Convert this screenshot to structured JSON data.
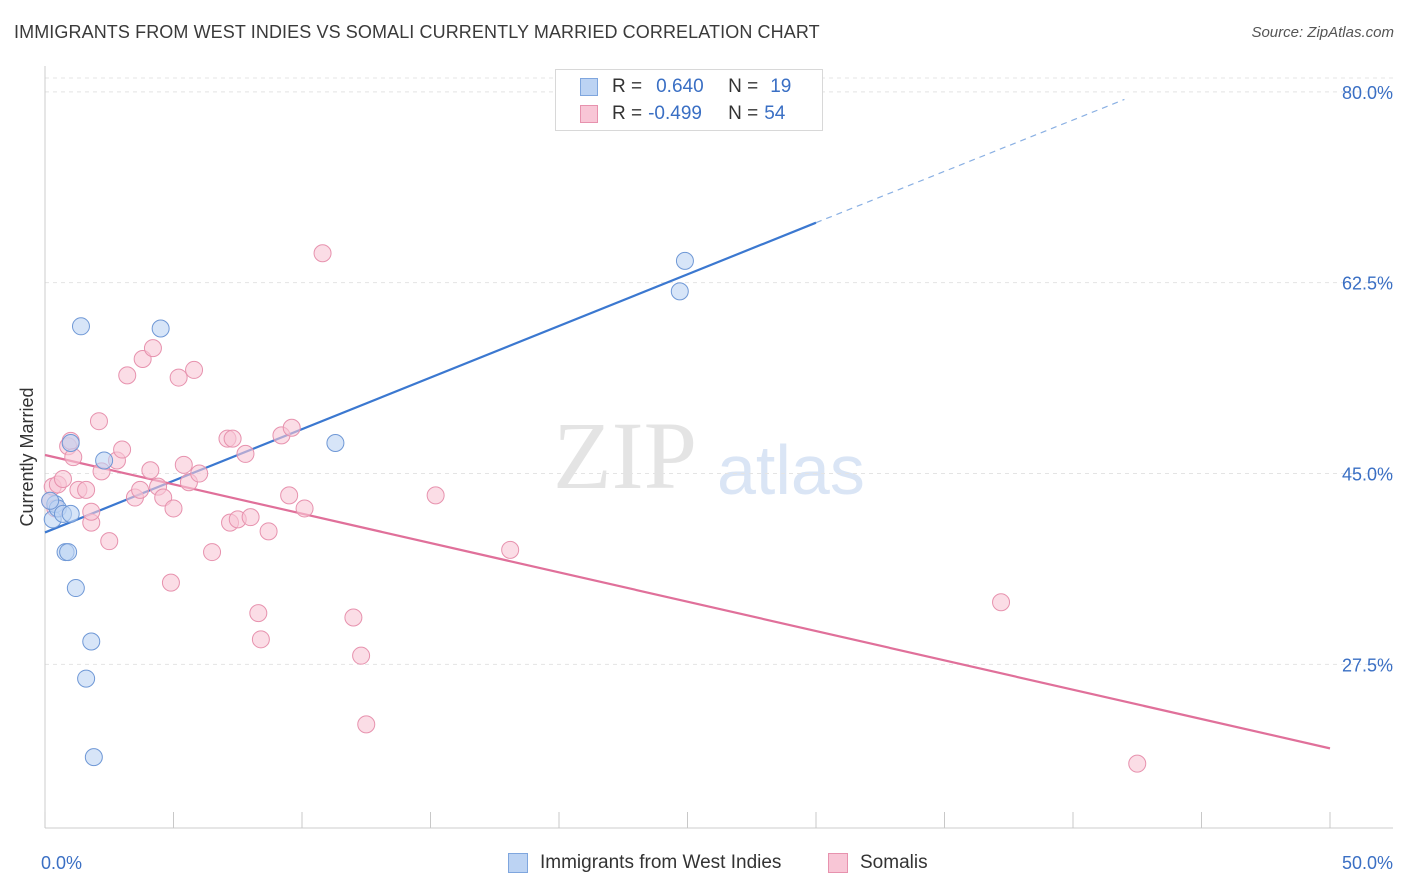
{
  "title": "IMMIGRANTS FROM WEST INDIES VS SOMALI CURRENTLY MARRIED CORRELATION CHART",
  "source": "Source: ZipAtlas.com",
  "watermark": {
    "zip": "ZIP",
    "atlas": "atlas"
  },
  "legend": {
    "r_label": "R =",
    "n_label": "N =",
    "series1": {
      "r": "0.640",
      "n": "19"
    },
    "series2": {
      "r": "-0.499",
      "n": "54"
    }
  },
  "chart_data": {
    "type": "scatter",
    "title": "IMMIGRANTS FROM WEST INDIES VS SOMALI CURRENTLY MARRIED CORRELATION CHART",
    "xlabel": "",
    "ylabel": "Currently Married",
    "xlim": [
      0,
      50
    ],
    "ylim": [
      12.5,
      82
    ],
    "x_tick_labels": [
      "0.0%",
      "50.0%"
    ],
    "y_ticks": [
      27.5,
      45.0,
      62.5,
      80.0
    ],
    "y_tick_labels": [
      "27.5%",
      "45.0%",
      "62.5%",
      "80.0%"
    ],
    "grid": true,
    "colors": {
      "series1": "#3b78d0",
      "series2": "#e0709a",
      "series1_fill": "#bcd3f3",
      "series2_fill": "#f8c6d6",
      "axis_text": "#3a6fc4"
    },
    "series": [
      {
        "name": "Immigrants from West Indies",
        "points": [
          [
            0.3,
            40.8
          ],
          [
            0.4,
            42.2
          ],
          [
            0.5,
            41.8
          ],
          [
            0.7,
            41.3
          ],
          [
            0.8,
            37.8
          ],
          [
            0.9,
            37.8
          ],
          [
            1.0,
            47.8
          ],
          [
            1.0,
            41.3
          ],
          [
            1.2,
            34.5
          ],
          [
            1.4,
            58.5
          ],
          [
            1.6,
            26.2
          ],
          [
            1.8,
            29.6
          ],
          [
            1.9,
            19.0
          ],
          [
            2.3,
            46.2
          ],
          [
            4.5,
            58.3
          ],
          [
            11.3,
            47.8
          ],
          [
            24.7,
            61.7
          ],
          [
            24.9,
            64.5
          ],
          [
            0.2,
            42.5
          ]
        ],
        "trend": {
          "x0": 0,
          "y0": 39.6,
          "x1": 30,
          "y1": 68.0,
          "dash_x1": 42,
          "dash_y1": 79.3
        }
      },
      {
        "name": "Somalis",
        "points": [
          [
            0.2,
            42.5
          ],
          [
            0.3,
            43.8
          ],
          [
            0.4,
            41.8
          ],
          [
            0.5,
            44.0
          ],
          [
            0.7,
            44.5
          ],
          [
            0.9,
            47.5
          ],
          [
            1.0,
            48.0
          ],
          [
            1.1,
            46.5
          ],
          [
            1.3,
            43.5
          ],
          [
            1.6,
            43.5
          ],
          [
            1.8,
            40.5
          ],
          [
            1.8,
            41.5
          ],
          [
            2.1,
            49.8
          ],
          [
            2.2,
            45.2
          ],
          [
            2.5,
            38.8
          ],
          [
            2.8,
            46.2
          ],
          [
            3.0,
            47.2
          ],
          [
            3.2,
            54.0
          ],
          [
            3.5,
            42.8
          ],
          [
            3.7,
            43.5
          ],
          [
            3.8,
            55.5
          ],
          [
            4.1,
            45.3
          ],
          [
            4.2,
            56.5
          ],
          [
            4.4,
            43.8
          ],
          [
            4.6,
            42.8
          ],
          [
            4.9,
            35.0
          ],
          [
            5.0,
            41.8
          ],
          [
            5.2,
            53.8
          ],
          [
            5.4,
            45.8
          ],
          [
            5.6,
            44.2
          ],
          [
            5.8,
            54.5
          ],
          [
            6.0,
            45.0
          ],
          [
            6.5,
            37.8
          ],
          [
            7.1,
            48.2
          ],
          [
            7.2,
            40.5
          ],
          [
            7.3,
            48.2
          ],
          [
            7.5,
            40.8
          ],
          [
            7.8,
            46.8
          ],
          [
            8.0,
            41.0
          ],
          [
            8.3,
            32.2
          ],
          [
            8.4,
            29.8
          ],
          [
            8.7,
            39.7
          ],
          [
            9.2,
            48.5
          ],
          [
            9.5,
            43.0
          ],
          [
            9.6,
            49.2
          ],
          [
            10.1,
            41.8
          ],
          [
            10.8,
            65.2
          ],
          [
            12.0,
            31.8
          ],
          [
            12.3,
            28.3
          ],
          [
            12.5,
            22.0
          ],
          [
            15.2,
            43.0
          ],
          [
            18.1,
            38.0
          ],
          [
            37.2,
            33.2
          ],
          [
            42.5,
            18.4
          ]
        ],
        "trend": {
          "x0": 0,
          "y0": 46.7,
          "x1": 50,
          "y1": 19.8
        }
      }
    ]
  },
  "bottom_legend": {
    "series1": "Immigrants from West Indies",
    "series2": "Somalis"
  }
}
